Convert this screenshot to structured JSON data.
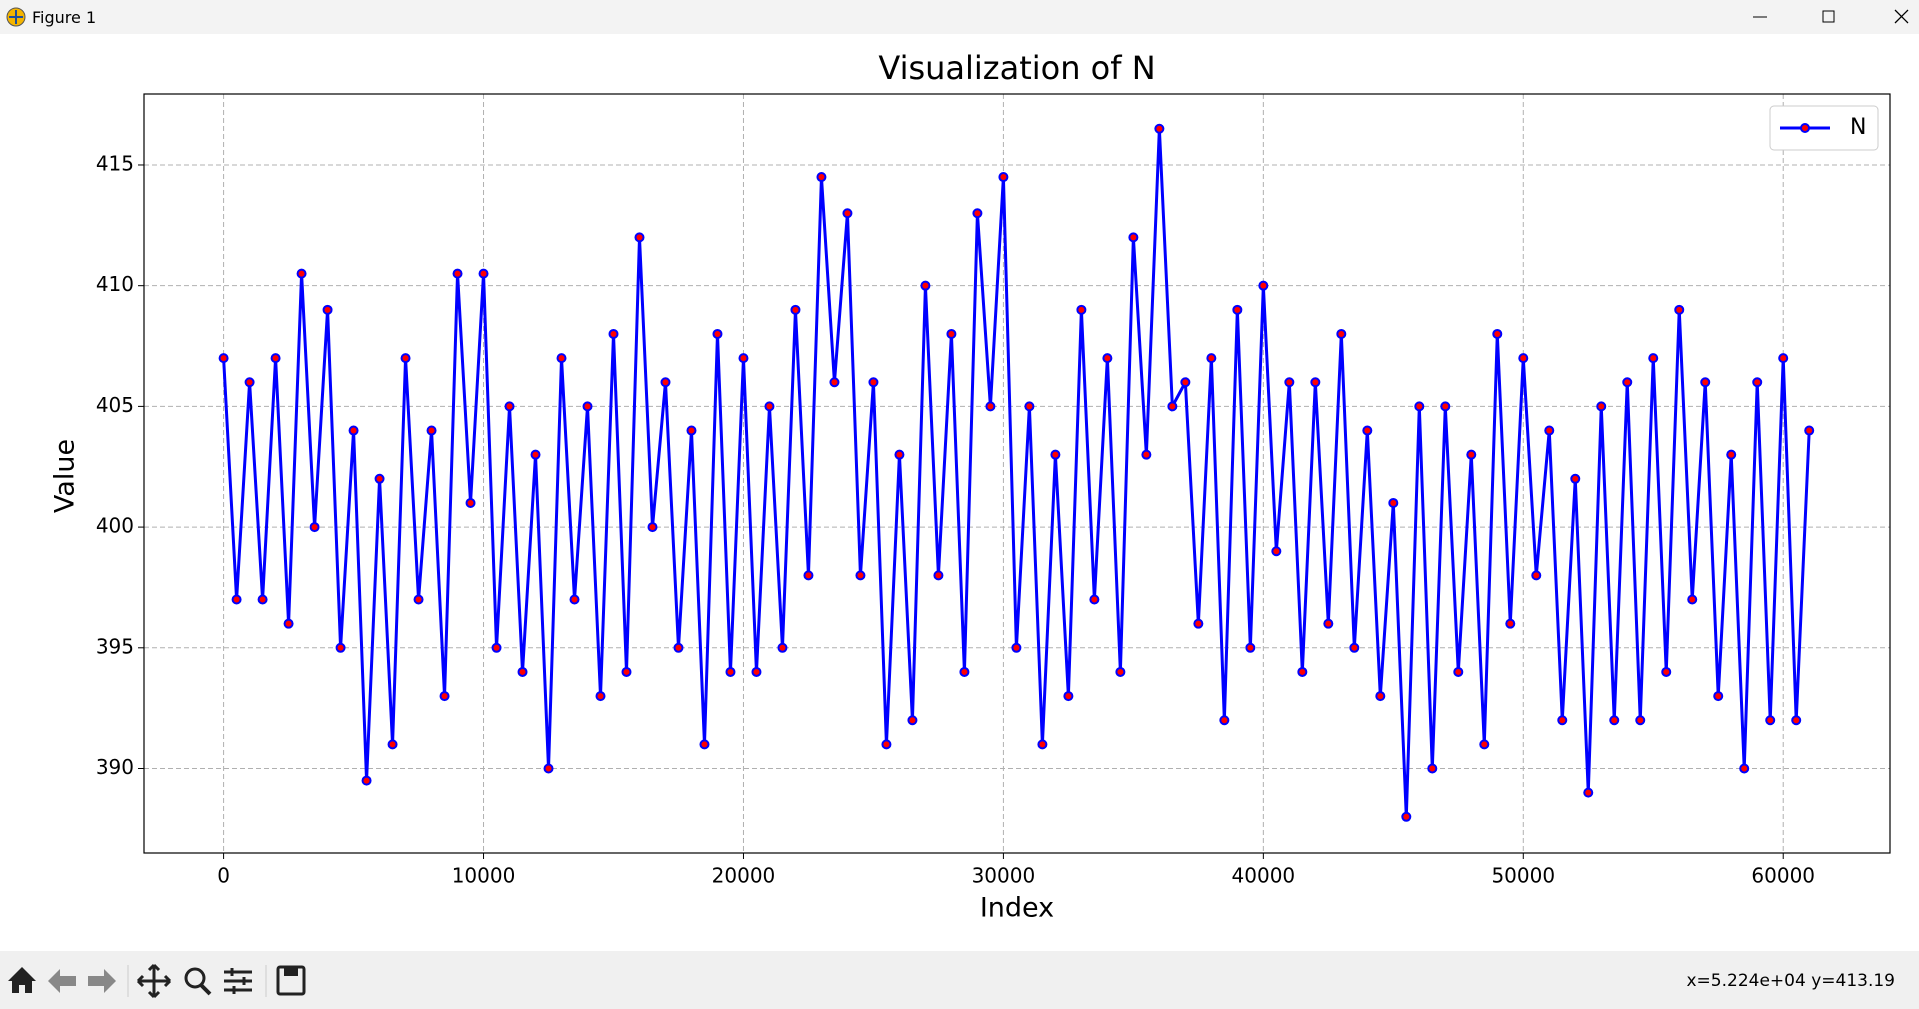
{
  "window": {
    "title": "Figure 1",
    "status": "x=5.224e+04 y=413.19"
  },
  "chart_data": {
    "type": "line",
    "title": "Visualization of N",
    "x_label": "Index",
    "y_label": "Value",
    "x": [
      0,
      500,
      1000,
      1500,
      2000,
      2500,
      3000,
      3500,
      4000,
      4500,
      5000,
      5500,
      6000,
      6500,
      7000,
      7500,
      8000,
      8500,
      9000,
      9500,
      10000,
      10500,
      11000,
      11500,
      12000,
      12500,
      13000,
      13500,
      14000,
      14500,
      15000,
      15500,
      16000,
      16500,
      17000,
      17500,
      18000,
      18500,
      19000,
      19500,
      20000,
      20500,
      21000,
      21500,
      22000,
      22500,
      23000,
      23500,
      24000,
      24500,
      25000,
      25500,
      26000,
      26500,
      27000,
      27500,
      28000,
      28500,
      29000,
      29500,
      30000,
      30500,
      31000,
      31500,
      32000,
      32500,
      33000,
      33500,
      34000,
      34500,
      35000,
      35500,
      36000,
      36500,
      37000,
      37500,
      38000,
      38500,
      39000,
      39500,
      40000,
      40500,
      41000,
      41500,
      42000,
      42500,
      43000,
      43500,
      44000,
      44500,
      45000,
      45500,
      46000,
      46500,
      47000,
      47500,
      48000,
      48500,
      49000,
      49500,
      50000,
      50500,
      51000,
      51500,
      52000,
      52500,
      53000,
      53500,
      54000,
      54500,
      55000,
      55500,
      56000,
      56500,
      57000,
      57500,
      58000,
      58500,
      59000,
      59500,
      60000,
      60500,
      61000
    ],
    "series": [
      {
        "name": "N",
        "color": "#0000ff",
        "marker_color": "#ff0000",
        "values": [
          407,
          397,
          406,
          397,
          407,
          396,
          410.5,
          400,
          409,
          395,
          404,
          389.5,
          402,
          391,
          407,
          397,
          404,
          393,
          410.5,
          401,
          410.5,
          395,
          405,
          394,
          403,
          390,
          407,
          397,
          405,
          393,
          408,
          394,
          412,
          400,
          406,
          395,
          404,
          391,
          408,
          394,
          407,
          394,
          405,
          395,
          409,
          398,
          414.5,
          406,
          413,
          398,
          406,
          391,
          403,
          392,
          410,
          398,
          408,
          394,
          413,
          405,
          414.5,
          395,
          405,
          391,
          403,
          393,
          409,
          397,
          407,
          394,
          412,
          403,
          416.5,
          405,
          406,
          396,
          407,
          392,
          409,
          395,
          410,
          399,
          406,
          394,
          406,
          396,
          408,
          395,
          404,
          393,
          401,
          388,
          405,
          390,
          405,
          394,
          403,
          391,
          408,
          396,
          407,
          398,
          404,
          392,
          402,
          389,
          405,
          392,
          406,
          392,
          407,
          394,
          409,
          397,
          406,
          393,
          403,
          390,
          406,
          392,
          407,
          392,
          404
        ]
      }
    ],
    "xlim": [
      -3062,
      64108
    ],
    "ylim": [
      386.5,
      417.94
    ],
    "xticks": [
      0,
      10000,
      20000,
      30000,
      40000,
      50000,
      60000
    ],
    "yticks": [
      390,
      395,
      400,
      405,
      410,
      415
    ],
    "grid": true,
    "legend": "upper right"
  }
}
